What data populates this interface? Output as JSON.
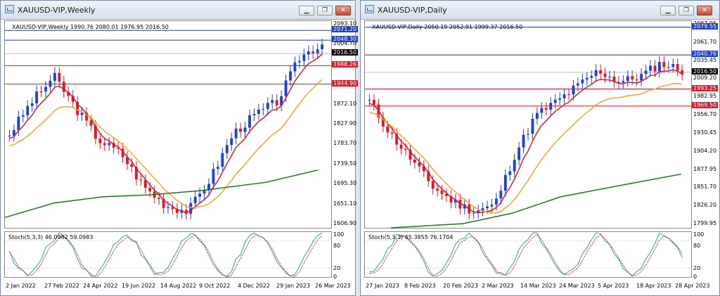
{
  "window1": {
    "title": "XAUUSD-VIP,Weekly",
    "legend": "XAUUSD-VIP,Weekly  1990.76 2080.01 1976.95 2016.50",
    "stoch_label": "Stoch(5,3,3) 46.0982 59.0983",
    "price_ticks": [
      "2093.10",
      "2004.70",
      "1960.50",
      "1916.30",
      "1872.10",
      "1827.90",
      "1783.70",
      "1739.50",
      "1695.30",
      "1651.10",
      "1606.90"
    ],
    "stoch_ticks": [
      "100",
      "80",
      "20",
      "0"
    ],
    "date_ticks": [
      "2 Jan 2022",
      "27 Feb 2022",
      "24 Apr 2022",
      "19 Jun 2022",
      "14 Aug 2022",
      "9 Oct 2022",
      "4 Dec 2022",
      "29 Jan 2023",
      "26 Mar 2023"
    ],
    "tags": [
      {
        "text": "2071.20",
        "price": 2071.2,
        "color": "#1e3fd0"
      },
      {
        "text": "2048.30",
        "price": 2048.3,
        "color": "#1e3fd0"
      },
      {
        "text": "2016.50",
        "price": 2016.5,
        "color": "#000000"
      },
      {
        "text": "1988.26",
        "price": 1988.26,
        "color": "#e0182a"
      },
      {
        "text": "1944.90",
        "price": 1944.9,
        "color": "#e0182a"
      }
    ],
    "levels": [
      {
        "price": 2071.2,
        "color": "#2030c0"
      },
      {
        "price": 2048.3,
        "color": "#2030c0"
      },
      {
        "price": 1988.26,
        "color": "#d01020"
      },
      {
        "price": 1944.9,
        "color": "#d01020"
      }
    ]
  },
  "window2": {
    "title": "XAUUSD-VIP,Daily",
    "legend": "XAUUSD-VIP,Daily  2050.19 2052.91 1999.37 2016.50",
    "stoch_label": "Stoch(5,3,3) 65.3855 76.1704",
    "price_ticks": [
      "2087.95",
      "2061.70",
      "2035.45",
      "2009.20",
      "1982.95",
      "1956.70",
      "1930.45",
      "1904.20",
      "1877.95",
      "1851.70",
      "1826.20",
      "1799.95"
    ],
    "stoch_ticks": [
      "100",
      "80",
      "20",
      "0"
    ],
    "date_ticks": [
      "27 Jan 2023",
      "8 Feb 2023",
      "20 Feb 2023",
      "2 Mar 2023",
      "14 Mar 2023",
      "24 Mar 2023",
      "5 Apr 2023",
      "18 Apr 2023",
      "28 Apr 2023"
    ],
    "tags": [
      {
        "text": "2079.55",
        "price": 2079.55,
        "color": "#1e3fd0"
      },
      {
        "text": "2040.76",
        "price": 2040.76,
        "color": "#1e3fd0"
      },
      {
        "text": "2016.50",
        "price": 2016.5,
        "color": "#000000"
      },
      {
        "text": "1993.25",
        "price": 1993.25,
        "color": "#e0182a"
      },
      {
        "text": "1969.50",
        "price": 1969.5,
        "color": "#e0182a"
      }
    ],
    "levels": [
      {
        "price": 2079.55,
        "color": "#2030c0"
      },
      {
        "price": 2040.76,
        "color": "#2030c0"
      },
      {
        "price": 1993.25,
        "color": "#d01020"
      },
      {
        "price": 1969.5,
        "color": "#d01020"
      }
    ]
  },
  "window_buttons": {
    "minimize": "▁",
    "restore": "❐",
    "close": "✕"
  },
  "colors": {
    "bull": "#1f3fe0",
    "bear": "#e0182a",
    "ma_fast": "#e0182a",
    "ma_mid": "#f5a623",
    "ma_slow": "#1a7a1a",
    "stoch_main": "#20a8b0",
    "stoch_signal": "#e0182a"
  }
}
